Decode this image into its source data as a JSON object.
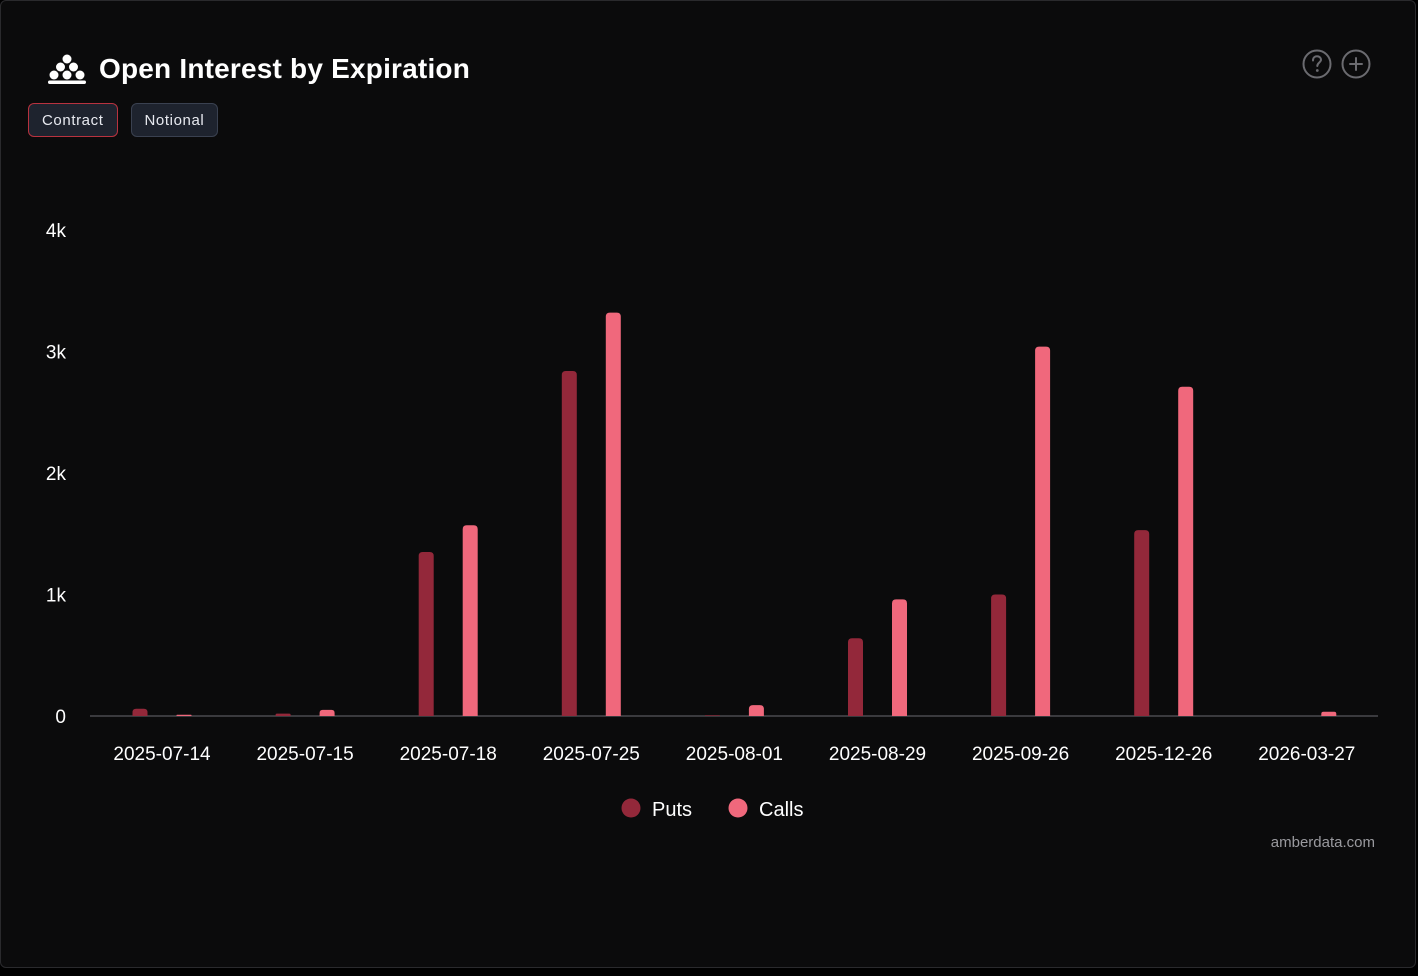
{
  "header": {
    "title": "Open Interest by Expiration",
    "logo_icon": "amberdata-logo-icon",
    "help_icon": "question-circle-icon",
    "add_icon": "plus-circle-icon"
  },
  "toggles": {
    "contract_label": "Contract",
    "notional_label": "Notional",
    "active": "Contract"
  },
  "colors": {
    "puts": "#93283a",
    "calls": "#f0687c",
    "background": "#0b0b0c",
    "axis": "#4a4a4f",
    "text": "#ffffff",
    "active_border": "#b8323f"
  },
  "chart_data": {
    "type": "bar",
    "title": "Open Interest by Expiration",
    "xlabel": "",
    "ylabel": "",
    "categories": [
      "2025-07-14",
      "2025-07-15",
      "2025-07-18",
      "2025-07-25",
      "2025-08-01",
      "2025-08-29",
      "2025-09-26",
      "2025-12-26",
      "2026-03-27"
    ],
    "series": [
      {
        "name": "Puts",
        "values": [
          60,
          20,
          1350,
          2840,
          5,
          640,
          1000,
          1530,
          0
        ]
      },
      {
        "name": "Calls",
        "values": [
          10,
          50,
          1570,
          3320,
          90,
          960,
          3040,
          2710,
          35
        ]
      }
    ],
    "ylim": [
      0,
      4000
    ],
    "yticks": [
      0,
      1000,
      2000,
      3000,
      4000
    ],
    "ytick_labels": [
      "0",
      "1k",
      "2k",
      "3k",
      "4k"
    ],
    "grid": false,
    "legend": "bottom-center"
  },
  "footer": {
    "watermark": "amberdata.com"
  }
}
